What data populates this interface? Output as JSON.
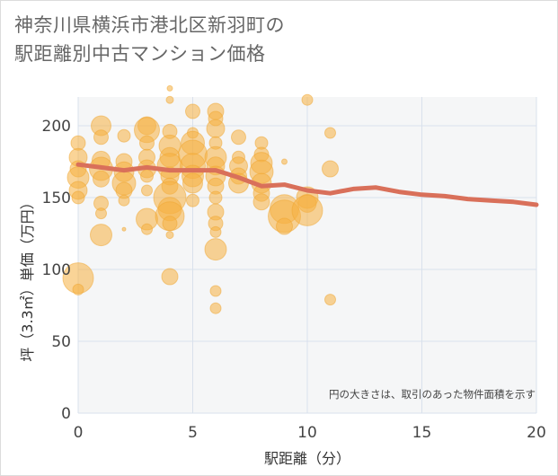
{
  "chart_data": {
    "type": "scatter",
    "title_line1": "神奈川県横浜市港北区新羽町の",
    "title_line2": "駅距離別中古マンション価格",
    "xlabel": "駅距離（分）",
    "ylabel": "坪（3.3㎡）単価（万円）",
    "annotation": "円の大きさは、取引のあった物件面積を示す",
    "xlim": [
      0,
      20
    ],
    "ylim": [
      0,
      220
    ],
    "x_ticks": [
      0,
      5,
      10,
      15,
      20
    ],
    "y_ticks": [
      0,
      50,
      100,
      150,
      200
    ],
    "colors": {
      "bubble": "#f5b041",
      "line": "#d9705a",
      "grid": "#d9e1ec",
      "plot_bg": "#f5f6f7"
    },
    "bubbles": [
      {
        "x": 0,
        "y": 188,
        "s": 8
      },
      {
        "x": 0,
        "y": 178,
        "s": 10
      },
      {
        "x": 0,
        "y": 170,
        "s": 9
      },
      {
        "x": 0,
        "y": 164,
        "s": 12
      },
      {
        "x": 0,
        "y": 155,
        "s": 10
      },
      {
        "x": 0,
        "y": 150,
        "s": 7
      },
      {
        "x": 0,
        "y": 94,
        "s": 17
      },
      {
        "x": 0,
        "y": 86,
        "s": 6
      },
      {
        "x": 1,
        "y": 200,
        "s": 11
      },
      {
        "x": 1,
        "y": 192,
        "s": 8
      },
      {
        "x": 1,
        "y": 176,
        "s": 10
      },
      {
        "x": 1,
        "y": 170,
        "s": 13
      },
      {
        "x": 1,
        "y": 163,
        "s": 9
      },
      {
        "x": 1,
        "y": 146,
        "s": 8
      },
      {
        "x": 1,
        "y": 139,
        "s": 6
      },
      {
        "x": 1,
        "y": 124,
        "s": 12
      },
      {
        "x": 2,
        "y": 193,
        "s": 7
      },
      {
        "x": 2,
        "y": 175,
        "s": 9
      },
      {
        "x": 2,
        "y": 168,
        "s": 11
      },
      {
        "x": 2,
        "y": 160,
        "s": 13
      },
      {
        "x": 2,
        "y": 155,
        "s": 9
      },
      {
        "x": 2,
        "y": 148,
        "s": 6
      },
      {
        "x": 2,
        "y": 128,
        "s": 2
      },
      {
        "x": 3,
        "y": 200,
        "s": 10
      },
      {
        "x": 3,
        "y": 197,
        "s": 14
      },
      {
        "x": 3,
        "y": 188,
        "s": 8
      },
      {
        "x": 3,
        "y": 178,
        "s": 9
      },
      {
        "x": 3,
        "y": 170,
        "s": 10
      },
      {
        "x": 3,
        "y": 165,
        "s": 7
      },
      {
        "x": 3,
        "y": 155,
        "s": 6
      },
      {
        "x": 3,
        "y": 135,
        "s": 12
      },
      {
        "x": 3,
        "y": 128,
        "s": 6
      },
      {
        "x": 4,
        "y": 226,
        "s": 3
      },
      {
        "x": 4,
        "y": 218,
        "s": 4
      },
      {
        "x": 4,
        "y": 196,
        "s": 8
      },
      {
        "x": 4,
        "y": 186,
        "s": 12
      },
      {
        "x": 4,
        "y": 178,
        "s": 11
      },
      {
        "x": 4,
        "y": 172,
        "s": 14
      },
      {
        "x": 4,
        "y": 165,
        "s": 10
      },
      {
        "x": 4,
        "y": 158,
        "s": 9
      },
      {
        "x": 4,
        "y": 150,
        "s": 18
      },
      {
        "x": 4,
        "y": 142,
        "s": 13
      },
      {
        "x": 4,
        "y": 137,
        "s": 16
      },
      {
        "x": 4,
        "y": 132,
        "s": 8
      },
      {
        "x": 4,
        "y": 124,
        "s": 4
      },
      {
        "x": 4,
        "y": 95,
        "s": 9
      },
      {
        "x": 5,
        "y": 210,
        "s": 8
      },
      {
        "x": 5,
        "y": 195,
        "s": 6
      },
      {
        "x": 5,
        "y": 188,
        "s": 13
      },
      {
        "x": 5,
        "y": 180,
        "s": 16
      },
      {
        "x": 5,
        "y": 172,
        "s": 14
      },
      {
        "x": 5,
        "y": 165,
        "s": 12
      },
      {
        "x": 5,
        "y": 160,
        "s": 11
      },
      {
        "x": 5,
        "y": 148,
        "s": 7
      },
      {
        "x": 6,
        "y": 210,
        "s": 9
      },
      {
        "x": 6,
        "y": 205,
        "s": 8
      },
      {
        "x": 6,
        "y": 198,
        "s": 10
      },
      {
        "x": 6,
        "y": 188,
        "s": 7
      },
      {
        "x": 6,
        "y": 178,
        "s": 12
      },
      {
        "x": 6,
        "y": 172,
        "s": 10
      },
      {
        "x": 6,
        "y": 165,
        "s": 11
      },
      {
        "x": 6,
        "y": 158,
        "s": 9
      },
      {
        "x": 6,
        "y": 150,
        "s": 7
      },
      {
        "x": 6,
        "y": 140,
        "s": 9
      },
      {
        "x": 6,
        "y": 132,
        "s": 8
      },
      {
        "x": 6,
        "y": 126,
        "s": 6
      },
      {
        "x": 6,
        "y": 114,
        "s": 12
      },
      {
        "x": 6,
        "y": 85,
        "s": 6
      },
      {
        "x": 6,
        "y": 73,
        "s": 6
      },
      {
        "x": 7,
        "y": 192,
        "s": 8
      },
      {
        "x": 7,
        "y": 178,
        "s": 7
      },
      {
        "x": 7,
        "y": 172,
        "s": 10
      },
      {
        "x": 7,
        "y": 165,
        "s": 9
      },
      {
        "x": 7,
        "y": 160,
        "s": 11
      },
      {
        "x": 8,
        "y": 188,
        "s": 7
      },
      {
        "x": 8,
        "y": 180,
        "s": 8
      },
      {
        "x": 8,
        "y": 174,
        "s": 12
      },
      {
        "x": 8,
        "y": 168,
        "s": 13
      },
      {
        "x": 8,
        "y": 160,
        "s": 11
      },
      {
        "x": 8,
        "y": 153,
        "s": 9
      },
      {
        "x": 8,
        "y": 147,
        "s": 9
      },
      {
        "x": 9,
        "y": 175,
        "s": 3
      },
      {
        "x": 9,
        "y": 142,
        "s": 16
      },
      {
        "x": 9,
        "y": 137,
        "s": 18
      },
      {
        "x": 9,
        "y": 130,
        "s": 9
      },
      {
        "x": 10,
        "y": 218,
        "s": 6
      },
      {
        "x": 10,
        "y": 150,
        "s": 12
      },
      {
        "x": 10,
        "y": 146,
        "s": 10
      },
      {
        "x": 10,
        "y": 141,
        "s": 17
      },
      {
        "x": 11,
        "y": 195,
        "s": 6
      },
      {
        "x": 11,
        "y": 170,
        "s": 9
      },
      {
        "x": 11,
        "y": 79,
        "s": 6
      }
    ],
    "trend": {
      "x": [
        0,
        1,
        2,
        3,
        4,
        5,
        6,
        7,
        8,
        9,
        10,
        11,
        12,
        13,
        14,
        15,
        16,
        17,
        18,
        19,
        20
      ],
      "y": [
        173,
        171,
        169,
        171,
        169,
        169,
        169,
        164,
        158,
        159,
        155,
        153,
        156,
        157,
        154,
        152,
        151,
        149,
        148,
        147,
        145
      ]
    }
  }
}
